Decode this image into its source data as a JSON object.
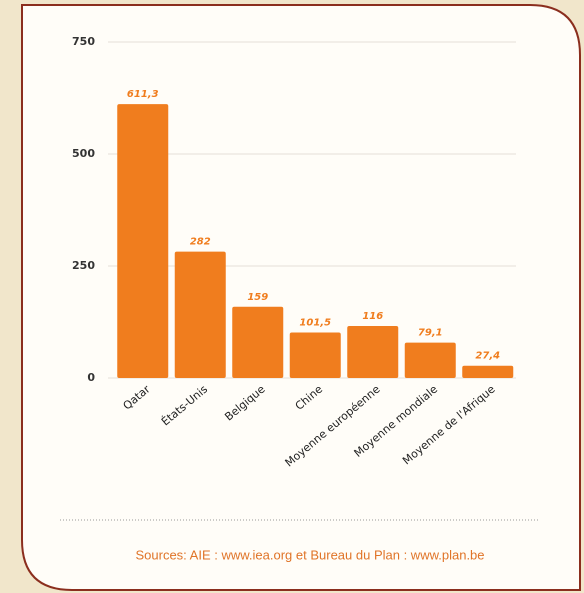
{
  "chart_data": {
    "type": "bar",
    "categories": [
      "Qatar",
      "États-Unis",
      "Belgique",
      "Chine",
      "Moyenne européenne",
      "Moyenne mondiale",
      "Moyenne de l'Afrique"
    ],
    "values": [
      611.3,
      282,
      159,
      101.5,
      116,
      79.1,
      27.4
    ],
    "value_labels": [
      "611,3",
      "282",
      "159",
      "101,5",
      "116",
      "79,1",
      "27,4"
    ],
    "color": "#f07d1e",
    "ylim": [
      0,
      750
    ],
    "yticks": [
      0,
      250,
      500,
      750
    ],
    "grid": true,
    "source": "Sources: AIE : www.iea.org et Bureau du Plan : www.plan.be"
  }
}
